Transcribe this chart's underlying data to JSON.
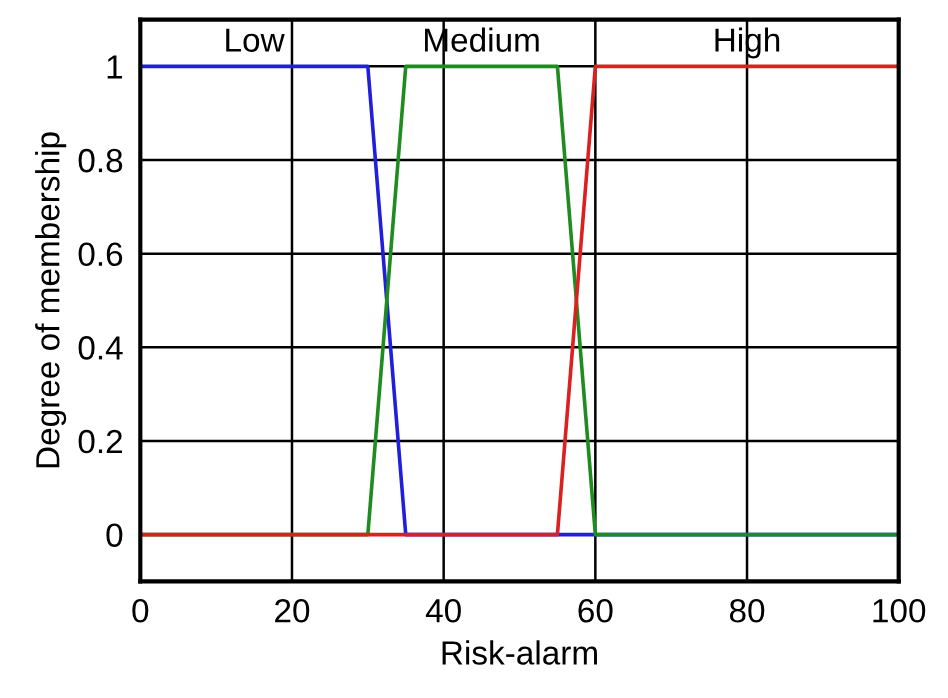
{
  "chart_data": {
    "type": "line",
    "xlabel": "Risk-alarm",
    "ylabel": "Degree of membership",
    "xlim": [
      0,
      100
    ],
    "xticks": [
      0,
      20,
      40,
      60,
      80,
      100
    ],
    "ylim": [
      -0.1,
      1.1
    ],
    "yticks": [
      0,
      0.2,
      0.4,
      0.6,
      0.8,
      1
    ],
    "grid": true,
    "series": [
      {
        "name": "Low",
        "color": "#1f1fdc",
        "x": [
          0,
          30,
          35,
          100
        ],
        "values": [
          1,
          1,
          0,
          0
        ]
      },
      {
        "name": "Medium",
        "color": "#1e8c1e",
        "x": [
          0,
          30,
          35,
          55,
          60,
          100
        ],
        "values": [
          0,
          0,
          1,
          1,
          0,
          0
        ]
      },
      {
        "name": "High",
        "color": "#dc2020",
        "x": [
          0,
          55,
          60,
          100
        ],
        "values": [
          0,
          0,
          1,
          1
        ]
      }
    ]
  }
}
